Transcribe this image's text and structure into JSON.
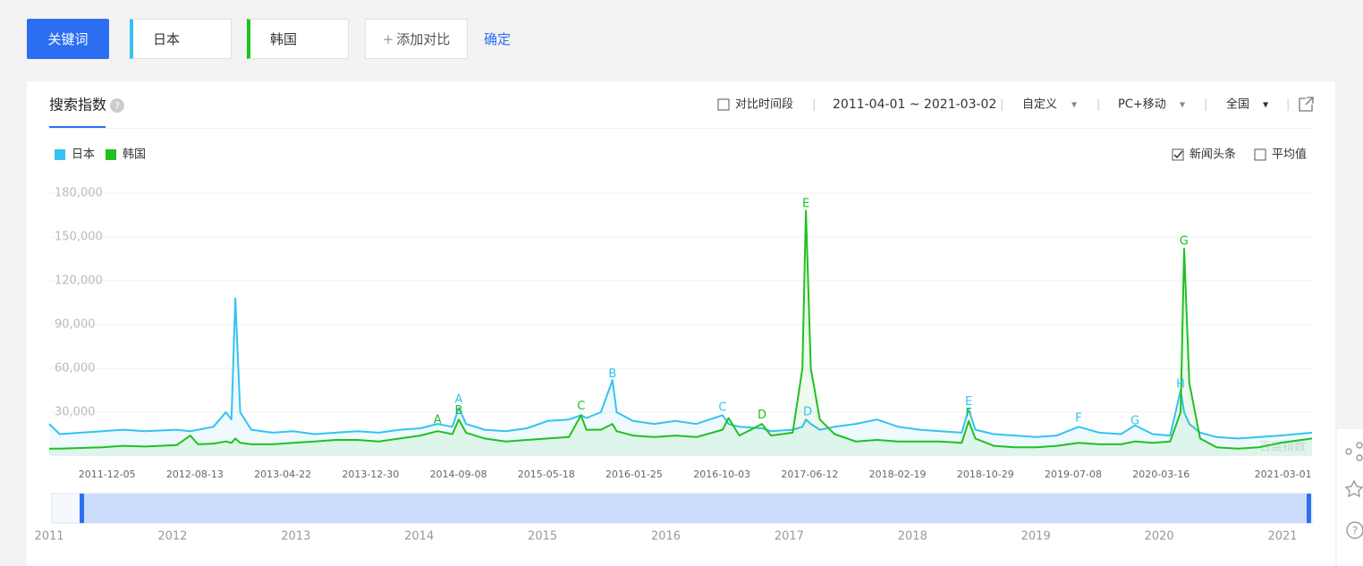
{
  "toolbar": {
    "keyword_button": "关键词",
    "keywords": [
      "日本",
      "韩国"
    ],
    "add_compare": "添加对比",
    "confirm": "确定"
  },
  "panel": {
    "tab": "搜索指数",
    "compare_period": "对比时间段",
    "date_range": "2011-04-01 ~ 2021-03-02",
    "period_mode": "自定义",
    "device": "PC+移动",
    "region": "全国",
    "news_headlines": "新闻头条",
    "news_checked": true,
    "average": "平均值",
    "average_checked": false,
    "watermark": "百度指数"
  },
  "chart_data": {
    "type": "line",
    "x": [
      "2011-04-01",
      "2011-05-01",
      "2011-07-01",
      "2011-09-01",
      "2011-11-01",
      "2012-01-01",
      "2012-04-01",
      "2012-05-10",
      "2012-06-01",
      "2012-07-15",
      "2012-08-20",
      "2012-09-05",
      "2012-09-16",
      "2012-09-30",
      "2012-11-01",
      "2013-01-01",
      "2013-03-01",
      "2013-05-01",
      "2013-07-01",
      "2013-09-01",
      "2013-11-01",
      "2014-01-01",
      "2014-03-01",
      "2014-04-19",
      "2014-06-01",
      "2014-06-19",
      "2014-07-10",
      "2014-09-01",
      "2014-11-01",
      "2015-01-01",
      "2015-03-01",
      "2015-05-01",
      "2015-06-05",
      "2015-06-20",
      "2015-08-01",
      "2015-09-03",
      "2015-09-15",
      "2015-11-01",
      "2016-01-01",
      "2016-03-01",
      "2016-05-01",
      "2016-07-15",
      "2016-08-01",
      "2016-09-01",
      "2016-11-05",
      "2016-12-01",
      "2017-02-01",
      "2017-03-01",
      "2017-03-11",
      "2017-03-25",
      "2017-04-20",
      "2017-06-01",
      "2017-08-01",
      "2017-10-01",
      "2017-12-01",
      "2018-02-01",
      "2018-04-01",
      "2018-06-01",
      "2018-06-21",
      "2018-07-10",
      "2018-09-01",
      "2018-11-01",
      "2019-01-01",
      "2019-03-01",
      "2019-05-02",
      "2019-07-01",
      "2019-09-01",
      "2019-10-11",
      "2019-12-01",
      "2020-01-20",
      "2020-02-19",
      "2020-02-29",
      "2020-03-15",
      "2020-04-15",
      "2020-06-01",
      "2020-08-01",
      "2020-10-01",
      "2020-12-01",
      "2021-03-02"
    ],
    "series": [
      {
        "name": "日本",
        "color": "#35c2f1",
        "values": [
          22000,
          15000,
          16000,
          17000,
          18000,
          17000,
          18000,
          17000,
          18000,
          20000,
          30000,
          25000,
          108000,
          30000,
          18000,
          16000,
          17000,
          15000,
          16000,
          17000,
          16000,
          18000,
          19000,
          22000,
          20000,
          33000,
          22000,
          18000,
          17000,
          19000,
          24000,
          25000,
          28000,
          26000,
          30000,
          52000,
          30000,
          24000,
          22000,
          24000,
          22000,
          28000,
          22000,
          20000,
          19000,
          17000,
          18000,
          20000,
          25000,
          22000,
          18000,
          20000,
          22000,
          25000,
          20000,
          18000,
          17000,
          16000,
          32000,
          18000,
          15000,
          14000,
          13000,
          14000,
          20000,
          16000,
          15000,
          21000,
          15000,
          14000,
          45000,
          30000,
          22000,
          16000,
          13000,
          12000,
          13000,
          14000,
          16000
        ]
      },
      {
        "name": "韩国",
        "color": "#1fc11f",
        "values": [
          5000,
          5000,
          5500,
          6000,
          7000,
          6500,
          7500,
          14000,
          8000,
          8500,
          10000,
          9000,
          12000,
          9000,
          8000,
          8000,
          9000,
          10000,
          11000,
          11000,
          10000,
          12000,
          14000,
          17000,
          15000,
          25000,
          16000,
          12000,
          10000,
          11000,
          12000,
          13000,
          28000,
          18000,
          18000,
          22000,
          17000,
          14000,
          13000,
          14000,
          13000,
          18000,
          26000,
          14000,
          22000,
          14000,
          16000,
          60000,
          168000,
          60000,
          25000,
          15000,
          10000,
          11000,
          10000,
          10000,
          10000,
          9000,
          24000,
          12000,
          7000,
          6000,
          6000,
          7000,
          9000,
          8000,
          8000,
          10000,
          9000,
          10000,
          30000,
          142000,
          50000,
          12000,
          6000,
          5000,
          6000,
          9000,
          12000
        ]
      }
    ],
    "xlim": [
      "2011-04-01",
      "2021-03-02"
    ],
    "xticks": [
      "2011-12-05",
      "2012-08-13",
      "2013-04-22",
      "2013-12-30",
      "2014-09-08",
      "2015-05-18",
      "2016-01-25",
      "2016-10-03",
      "2017-06-12",
      "2018-02-19",
      "2018-10-29",
      "2019-07-08",
      "2020-03-16",
      "2021-03-01"
    ],
    "ylim": [
      0,
      180000
    ],
    "yticks": [
      {
        "value": 30000,
        "label": "30,000"
      },
      {
        "value": 60000,
        "label": "60,000"
      },
      {
        "value": 90000,
        "label": "90,000"
      },
      {
        "value": 120000,
        "label": "120,000"
      },
      {
        "value": 150000,
        "label": "150,000"
      },
      {
        "value": 180000,
        "label": "180,000"
      }
    ],
    "grid": true,
    "annotations": [
      {
        "text": "A",
        "series": 1,
        "x": "2014-04-19",
        "y": 24500
      },
      {
        "text": "A",
        "series": 0,
        "x": "2014-06-19",
        "y": 38600
      },
      {
        "text": "B",
        "series": 1,
        "x": "2014-06-19",
        "y": 31000
      },
      {
        "text": "C",
        "series": 1,
        "x": "2015-06-05",
        "y": 34000
      },
      {
        "text": "B",
        "series": 0,
        "x": "2015-09-03",
        "y": 56000
      },
      {
        "text": "C",
        "series": 0,
        "x": "2016-07-15",
        "y": 33000
      },
      {
        "text": "D",
        "series": 1,
        "x": "2016-11-05",
        "y": 28000
      },
      {
        "text": "D",
        "series": 0,
        "x": "2017-03-16",
        "y": 30000
      },
      {
        "text": "E",
        "series": 1,
        "x": "2017-03-11",
        "y": 172600
      },
      {
        "text": "E",
        "series": 0,
        "x": "2018-06-21",
        "y": 37000
      },
      {
        "text": "F",
        "series": 1,
        "x": "2018-06-21",
        "y": 29000
      },
      {
        "text": "F",
        "series": 0,
        "x": "2019-05-02",
        "y": 25700
      },
      {
        "text": "G",
        "series": 0,
        "x": "2019-10-11",
        "y": 24000
      },
      {
        "text": "H",
        "series": 0,
        "x": "2020-02-19",
        "y": 49000
      },
      {
        "text": "G",
        "series": 1,
        "x": "2020-02-29",
        "y": 147000
      }
    ],
    "navigator_years": [
      "2011",
      "2012",
      "2013",
      "2014",
      "2015",
      "2016",
      "2017",
      "2018",
      "2019",
      "2020",
      "2021"
    ]
  }
}
